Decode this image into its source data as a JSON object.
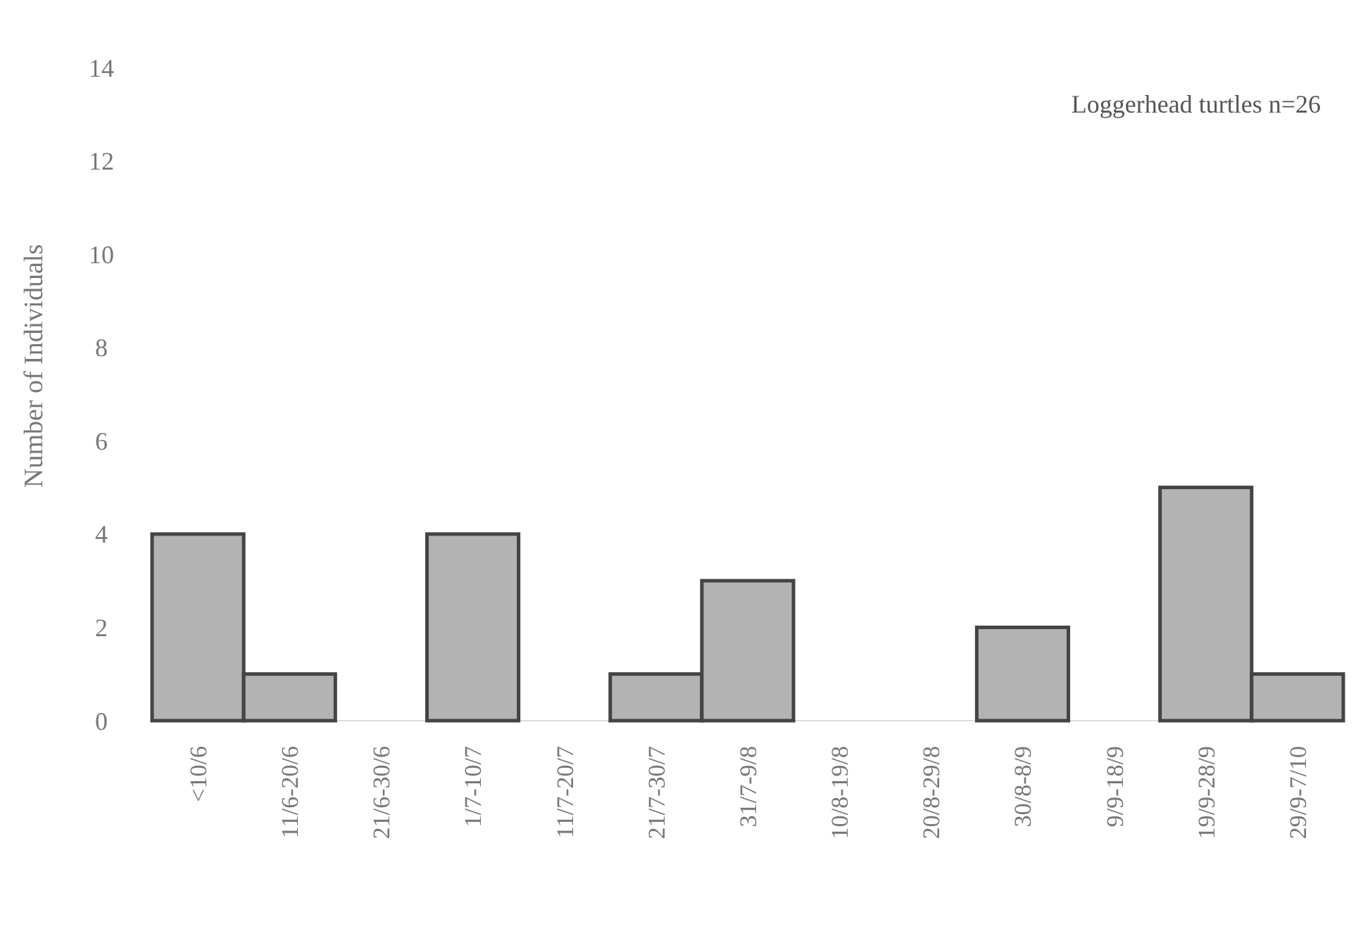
{
  "chart_data": {
    "type": "bar",
    "ylabel": "Number of Individuals",
    "categories": [
      "<10/6",
      "11/6-20/6",
      "21/6-30/6",
      "1/7-10/7",
      "11/7-20/7",
      "21/7-30/7",
      "31/7-9/8",
      "10/8-19/8",
      "20/8-29/8",
      "30/8-8/9",
      "9/9-18/9",
      "19/9-28/9",
      "29/9-7/10"
    ],
    "values": [
      4,
      1,
      0,
      4,
      0,
      1,
      3,
      0,
      0,
      2,
      0,
      5,
      1
    ],
    "color": "#b3b3b3",
    "ylim": [
      0,
      14
    ],
    "yticks": [
      0,
      2,
      4,
      6,
      8,
      10,
      12,
      14
    ],
    "annotations": [
      "Loggerhead turtles n=26"
    ]
  }
}
